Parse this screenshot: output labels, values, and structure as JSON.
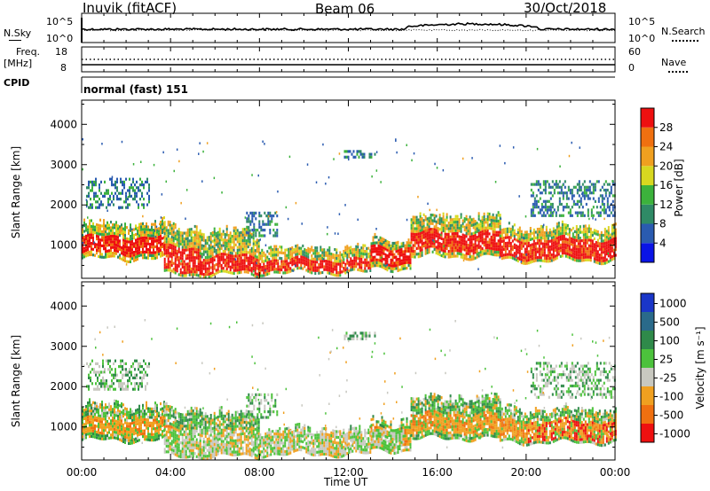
{
  "header": {
    "station": "Inuvik (fitACF)",
    "beam": "Beam 06",
    "date": "30/Oct/2018"
  },
  "top_panels": {
    "nsky_label": "N.Sky",
    "nsky_ticks": [
      "10^5",
      "10^0"
    ],
    "nsearch_label": "N.Search",
    "nsearch_ticks": [
      "10^5",
      "10^0"
    ],
    "freq_label": "Freq.",
    "freq_unit": "[MHz]",
    "freq_ticks": [
      "18",
      "8"
    ],
    "nave_label": "Nave",
    "nave_ticks": [
      "60",
      "0"
    ],
    "cpid_label": "CPID",
    "cpid_value": "normal (fast) 151"
  },
  "chart_data": [
    {
      "type": "heatmap",
      "name": "power",
      "xlabel": "",
      "ylabel": "Slant Range [km]",
      "x_ticks": [
        "00:00",
        "04:00",
        "08:00",
        "12:00",
        "16:00",
        "20:00",
        "00:00"
      ],
      "x_range_hours": [
        0,
        24
      ],
      "y_ticks": [
        1000,
        2000,
        3000,
        4000
      ],
      "ylim": [
        180,
        4600
      ],
      "colorbar_label": "Power [dB]",
      "colorbar_ticks": [
        "4",
        "8",
        "12",
        "16",
        "20",
        "24",
        "28"
      ],
      "colorbar_colors": [
        "#0a14e6",
        "#2a5bb0",
        "#2f8a66",
        "#3cb23c",
        "#d8d820",
        "#f0a020",
        "#f07010",
        "#ee1010"
      ],
      "bands": [
        {
          "start": 0.0,
          "end": 3.7,
          "low": 650,
          "high": 1500,
          "core_low": 780,
          "core_high": 1150
        },
        {
          "start": 3.7,
          "end": 5.3,
          "low": 250,
          "high": 1400,
          "core_low": 300,
          "core_high": 950
        },
        {
          "start": 5.3,
          "end": 8.0,
          "low": 250,
          "high": 1300,
          "core_low": 300,
          "core_high": 700
        },
        {
          "start": 8.0,
          "end": 13.0,
          "low": 300,
          "high": 900,
          "core_low": 350,
          "core_high": 650
        },
        {
          "start": 13.0,
          "end": 14.8,
          "low": 400,
          "high": 1100,
          "core_low": 500,
          "core_high": 900
        },
        {
          "start": 14.8,
          "end": 18.8,
          "low": 700,
          "high": 1700,
          "core_low": 800,
          "core_high": 1300
        },
        {
          "start": 18.8,
          "end": 24.0,
          "low": 600,
          "high": 1400,
          "core_low": 650,
          "core_high": 1100
        }
      ],
      "sporadic": [
        {
          "start": 11.8,
          "end": 13.2,
          "low": 3150,
          "high": 3350
        },
        {
          "start": 0.2,
          "end": 3.0,
          "low": 1900,
          "high": 2650
        },
        {
          "start": 20.2,
          "end": 24.0,
          "low": 1700,
          "high": 2600
        },
        {
          "start": 7.4,
          "end": 8.8,
          "low": 1200,
          "high": 1800
        }
      ]
    },
    {
      "type": "heatmap",
      "name": "velocity",
      "xlabel": "Time UT",
      "ylabel": "Slant Range [km]",
      "x_ticks": [
        "00:00",
        "04:00",
        "08:00",
        "12:00",
        "16:00",
        "20:00",
        "00:00"
      ],
      "x_range_hours": [
        0,
        24
      ],
      "y_ticks": [
        1000,
        2000,
        3000,
        4000
      ],
      "ylim": [
        180,
        4600
      ],
      "colorbar_label": "Velocity [m s⁻¹]",
      "colorbar_ticks": [
        "1000",
        "500",
        "100",
        "25",
        "-25",
        "-100",
        "-500",
        "-1000"
      ],
      "colorbar_colors": [
        "#1a36c8",
        "#2a6a8a",
        "#2f8a4a",
        "#4cc23c",
        "#c8c8c0",
        "#f0a020",
        "#f07010",
        "#ee1010"
      ]
    }
  ]
}
